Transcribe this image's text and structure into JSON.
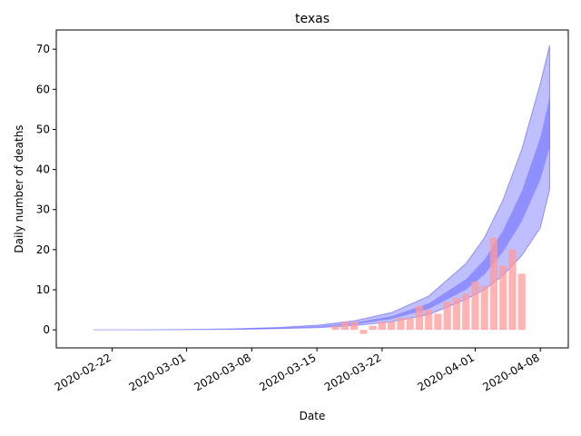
{
  "chart_data": {
    "type": "bar",
    "title": "texas",
    "xlabel": "Date",
    "ylabel": "Daily number of deaths",
    "ylim": [
      -4.5,
      74.8
    ],
    "xlim": [
      "2020-02-16",
      "2020-04-11"
    ],
    "yticks": [
      0,
      10,
      20,
      30,
      40,
      50,
      60,
      70
    ],
    "xticks": [
      "2020-02-22",
      "2020-03-01",
      "2020-03-08",
      "2020-03-15",
      "2020-03-22",
      "2020-04-01",
      "2020-04-08"
    ],
    "grid": false,
    "colors": {
      "bars": "#ff9999",
      "band": "#0000ff",
      "axes": "#000000"
    },
    "series": [
      {
        "kind": "bar",
        "x": [
          "2020-03-17",
          "2020-03-18",
          "2020-03-19",
          "2020-03-20",
          "2020-03-21",
          "2020-03-22",
          "2020-03-23",
          "2020-03-24",
          "2020-03-25",
          "2020-03-26",
          "2020-03-27",
          "2020-03-28",
          "2020-03-29",
          "2020-03-30",
          "2020-03-31",
          "2020-04-01",
          "2020-04-02",
          "2020-04-03",
          "2020-04-04",
          "2020-04-05",
          "2020-04-06"
        ],
        "values": [
          1,
          2,
          2,
          -1,
          1,
          2,
          2,
          3,
          3,
          6,
          5,
          4,
          7,
          8,
          9,
          12,
          11,
          23,
          16,
          20,
          14
        ]
      },
      {
        "kind": "band",
        "x": [
          "2020-02-20",
          "2020-02-24",
          "2020-02-28",
          "2020-03-03",
          "2020-03-07",
          "2020-03-11",
          "2020-03-15",
          "2020-03-19",
          "2020-03-23",
          "2020-03-27",
          "2020-03-31",
          "2020-04-02",
          "2020-04-04",
          "2020-04-06",
          "2020-04-08",
          "2020-04-09"
        ],
        "inner_low": [
          0,
          0,
          0.05,
          0.1,
          0.2,
          0.4,
          0.7,
          1.4,
          2.7,
          5.2,
          10,
          13.8,
          19.5,
          27,
          37.5,
          45.5
        ],
        "inner_high": [
          0,
          0,
          0.06,
          0.12,
          0.25,
          0.5,
          0.9,
          1.8,
          3.4,
          6.6,
          12.6,
          17.5,
          24.8,
          34.5,
          48,
          58
        ],
        "outer_low": [
          0,
          0,
          0.04,
          0.08,
          0.15,
          0.3,
          0.55,
          1.05,
          2,
          3.8,
          7.6,
          10,
          13.6,
          18.5,
          25.5,
          35
        ],
        "outer_high": [
          0,
          0,
          0.07,
          0.15,
          0.3,
          0.6,
          1.15,
          2.25,
          4.3,
          8.4,
          16.5,
          23,
          32.5,
          45,
          61.5,
          71
        ]
      }
    ]
  }
}
